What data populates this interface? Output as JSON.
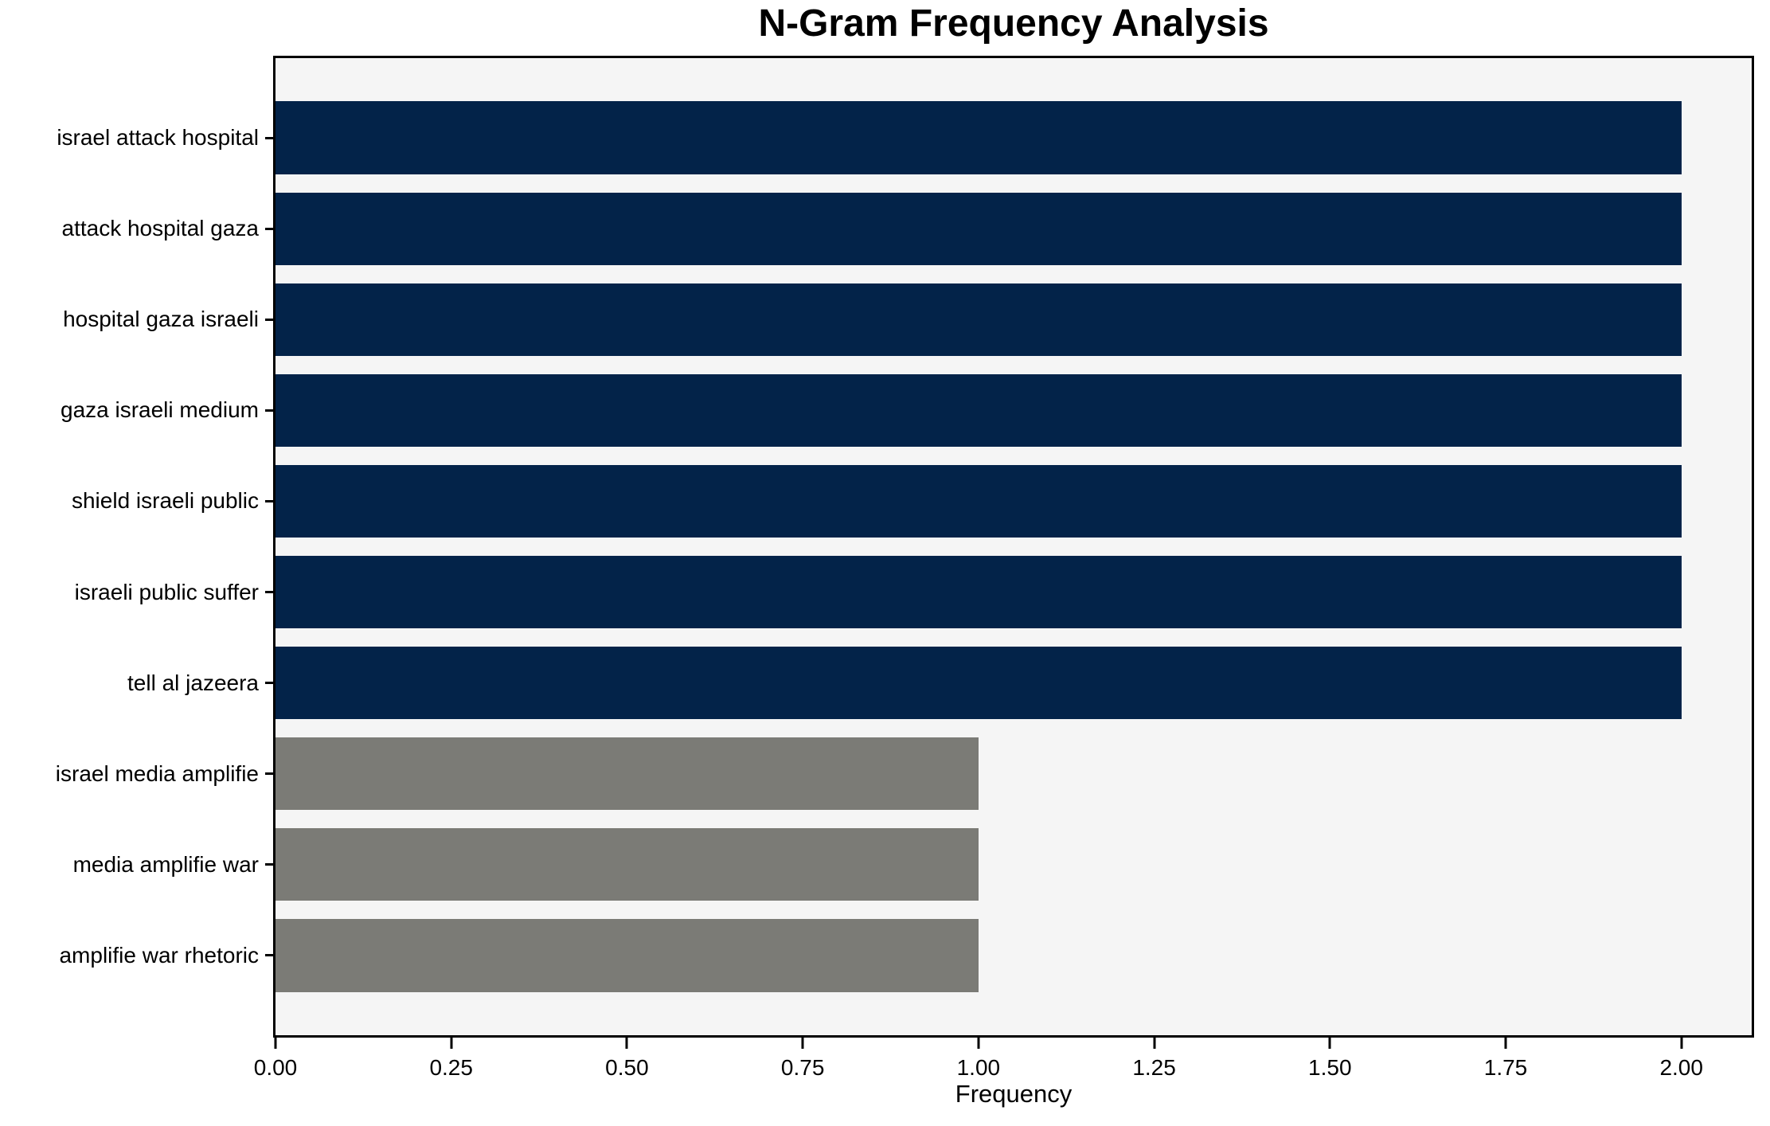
{
  "chart_data": {
    "type": "bar",
    "orientation": "horizontal",
    "title": "N-Gram Frequency Analysis",
    "xlabel": "Frequency",
    "ylabel": "",
    "categories": [
      "israel attack hospital",
      "attack hospital gaza",
      "hospital gaza israeli",
      "gaza israeli medium",
      "shield israeli public",
      "israeli public suffer",
      "tell al jazeera",
      "israel media amplifie",
      "media amplifie war",
      "amplifie war rhetoric"
    ],
    "values": [
      2,
      2,
      2,
      2,
      2,
      2,
      2,
      1,
      1,
      1
    ],
    "bar_colors": [
      "#032349",
      "#032349",
      "#032349",
      "#032349",
      "#032349",
      "#032349",
      "#032349",
      "#7b7b76",
      "#7b7b76",
      "#7b7b76"
    ],
    "xlim": [
      0,
      2.1
    ],
    "xticks": [
      {
        "value": 0.0,
        "label": "0.00"
      },
      {
        "value": 0.25,
        "label": "0.25"
      },
      {
        "value": 0.5,
        "label": "0.50"
      },
      {
        "value": 0.75,
        "label": "0.75"
      },
      {
        "value": 1.0,
        "label": "1.00"
      },
      {
        "value": 1.25,
        "label": "1.25"
      },
      {
        "value": 1.5,
        "label": "1.50"
      },
      {
        "value": 1.75,
        "label": "1.75"
      },
      {
        "value": 2.0,
        "label": "2.00"
      }
    ],
    "grid": false,
    "legend_position": "none",
    "plot_background": "#f5f5f5",
    "figure_background": "#ffffff",
    "colors": {
      "high_freq_bar": "#032349",
      "low_freq_bar": "#7b7b76",
      "axis": "#000000"
    }
  }
}
